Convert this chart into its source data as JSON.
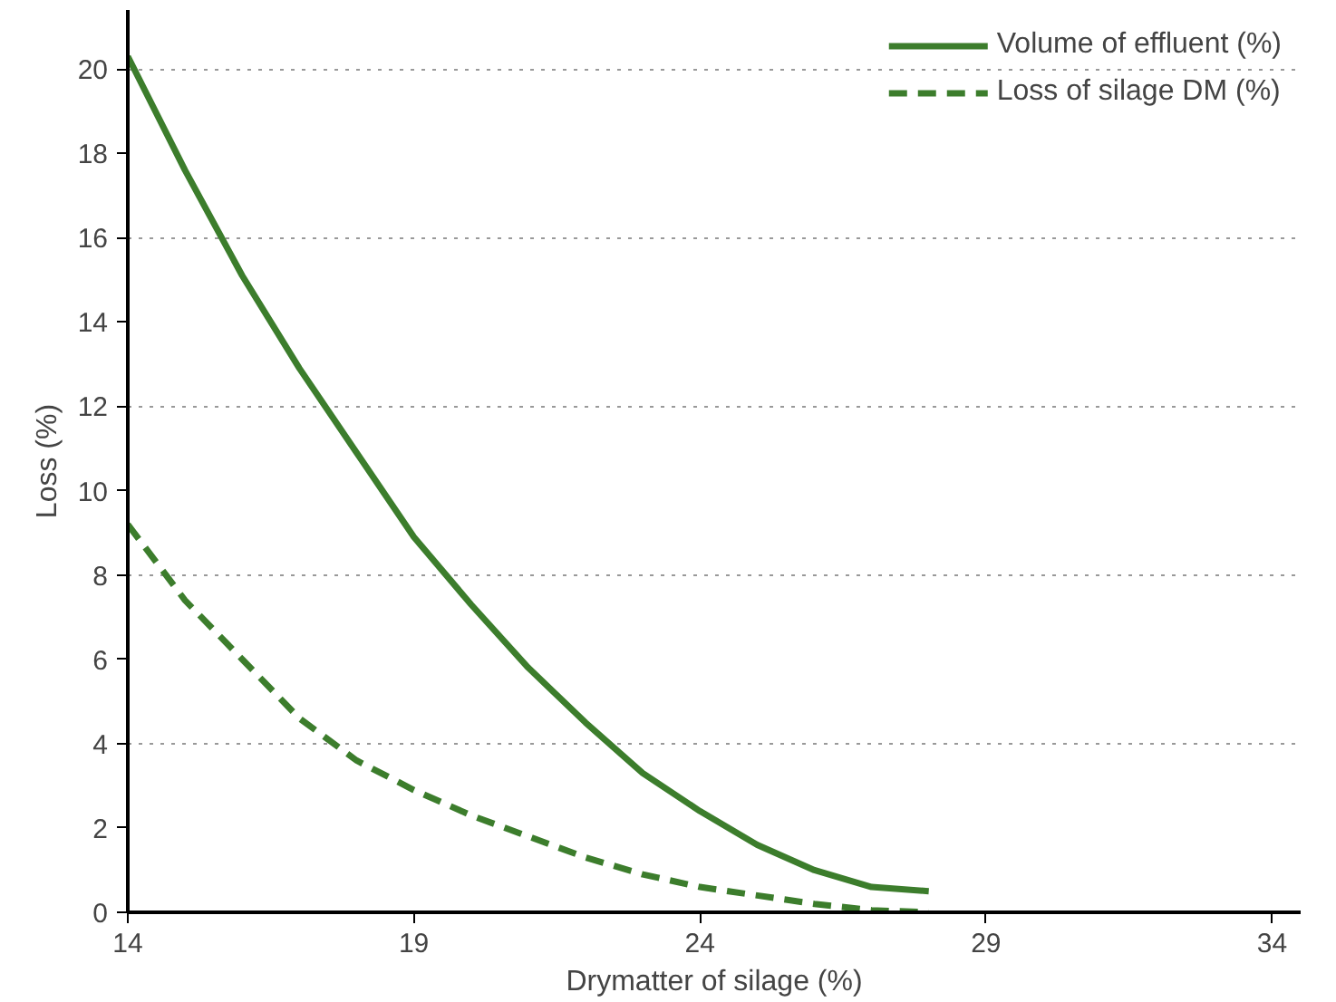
{
  "chart_data": {
    "type": "line",
    "xlabel": "Drymatter of silage (%)",
    "ylabel": "Loss (%)",
    "x": [
      14,
      15,
      16,
      17,
      18,
      19,
      20,
      21,
      22,
      23,
      24,
      25,
      26,
      27,
      28
    ],
    "series": [
      {
        "name": "Volume of effluent (%)",
        "color": "#3c7d2c",
        "line_style": "solid",
        "values": [
          20.3,
          17.6,
          15.1,
          12.9,
          10.9,
          8.9,
          7.3,
          5.8,
          4.5,
          3.3,
          2.4,
          1.6,
          1.0,
          0.6,
          0.5
        ]
      },
      {
        "name": "Loss of silage DM (%)",
        "color": "#3c7d2c",
        "line_style": "dashed",
        "values": [
          9.2,
          7.4,
          6.0,
          4.6,
          3.6,
          2.9,
          2.3,
          1.8,
          1.3,
          0.9,
          0.6,
          0.4,
          0.2,
          0.05,
          0.0
        ]
      }
    ],
    "xlim": [
      14,
      34.5
    ],
    "ylim": [
      0,
      21.4
    ],
    "xticks": [
      14,
      19,
      24,
      29,
      34
    ],
    "yticks": [
      0,
      2,
      4,
      6,
      8,
      10,
      12,
      14,
      16,
      18,
      20
    ],
    "grid": "y",
    "legend": "top right",
    "marker": "none"
  }
}
